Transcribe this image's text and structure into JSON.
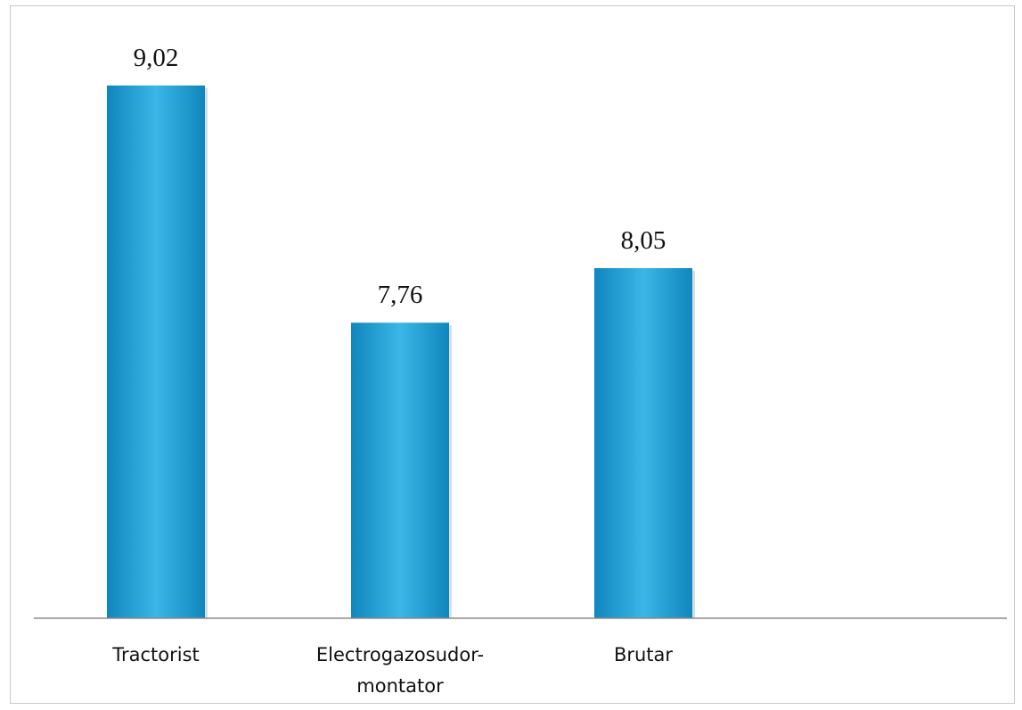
{
  "chart_data": {
    "type": "bar",
    "categories": [
      "Tractorist",
      "Electrogazosudor-montator",
      "Brutar"
    ],
    "category_lines": [
      [
        "Tractorist"
      ],
      [
        "Electrogazosudor-",
        "montator"
      ],
      [
        "Brutar"
      ]
    ],
    "values": [
      9.02,
      7.76,
      8.05
    ],
    "value_labels": [
      "9,02",
      "7,76",
      "8,05"
    ],
    "bar_color": "#1a9fd6",
    "bar_color_light": "#3bb6e6",
    "bar_color_dark": "#0f86bd",
    "baseline_color": "#8c8c8c",
    "frame_color": "#c9c9c9",
    "axis_min": 6.19,
    "axis_max": 9.02,
    "grid": false,
    "legend": "none",
    "title": "",
    "xlabel": "",
    "ylabel": ""
  }
}
